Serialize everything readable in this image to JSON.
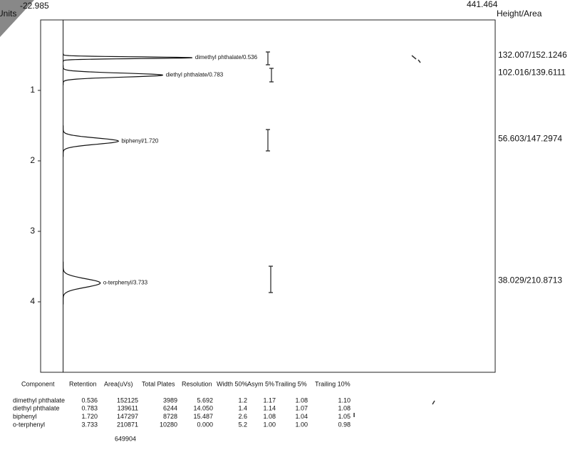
{
  "chart_data": {
    "type": "chromatogram",
    "y_label": "Units",
    "y2_label": "Height/Area",
    "xlim": [
      -22.985,
      441.464
    ],
    "ylim": [
      0,
      5
    ],
    "yticks": [
      1,
      2,
      3,
      4
    ],
    "color": "#111111",
    "peaks": {
      "labels": [
        "dimethyl phthalate/0.536",
        "diethyl phthalate/0.783",
        "biphenyl/1.720",
        "o-terphenyl/3.733"
      ],
      "retention": [
        0.536,
        0.783,
        1.72,
        3.733
      ],
      "height": [
        132.007,
        102.016,
        56.603,
        38.029
      ],
      "height_area_labels": [
        "132.007/152.1246",
        "102.016/139.6111",
        "56.603/147.2974",
        "38.029/210.8713"
      ]
    }
  },
  "table": {
    "columns": [
      "Component",
      "Retention",
      "Area(uVs)",
      "Total Plates",
      "Resolution",
      "Width 50%",
      "Asym 5%",
      "Trailing 5%",
      "Trailing 10%"
    ],
    "rows": [
      [
        "dimethyl phthalate",
        "0.536",
        "152125",
        "3989",
        "5.692",
        "1.2",
        "1.17",
        "1.08",
        "1.10"
      ],
      [
        "diethyl phthalate",
        "0.783",
        "139611",
        "6244",
        "14.050",
        "1.4",
        "1.14",
        "1.07",
        "1.08"
      ],
      [
        "biphenyl",
        "1.720",
        "147297",
        "8728",
        "15.487",
        "2.6",
        "1.08",
        "1.04",
        "1.05"
      ],
      [
        "o-terphenyl",
        "3.733",
        "210871",
        "10280",
        "0.000",
        "5.2",
        "1.00",
        "1.00",
        "0.98"
      ]
    ],
    "total": "649904"
  }
}
